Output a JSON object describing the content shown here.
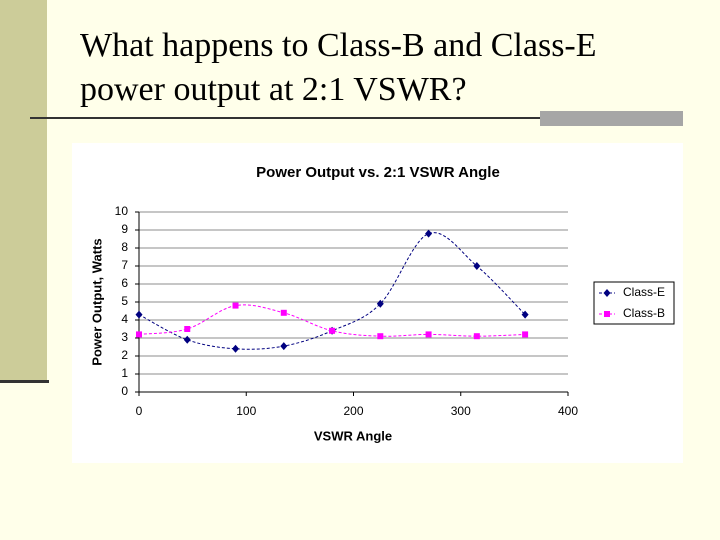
{
  "slide": {
    "title": "What happens to Class-B and Class-E power output at 2:1 VSWR?"
  },
  "chart_data": {
    "type": "line",
    "title": "Power Output vs. 2:1 VSWR Angle",
    "x_label": "VSWR Angle",
    "y_label": "Power Output, Watts",
    "x": [
      0,
      45,
      90,
      135,
      180,
      225,
      270,
      315,
      360
    ],
    "series": [
      {
        "name": "Class-E",
        "color": "#000080",
        "marker": "diamond",
        "values": [
          4.3,
          2.9,
          2.4,
          2.55,
          3.4,
          4.9,
          8.8,
          7.0,
          4.3
        ]
      },
      {
        "name": "Class-B",
        "color": "#ff00ff",
        "marker": "square",
        "values": [
          3.2,
          3.5,
          4.8,
          4.4,
          3.4,
          3.1,
          3.2,
          3.1,
          3.2
        ]
      }
    ],
    "xlim": [
      0,
      400
    ],
    "xticks": [
      0,
      100,
      200,
      300,
      400
    ],
    "ylim": [
      0,
      10
    ],
    "yticks": [
      0,
      1,
      2,
      3,
      4,
      5,
      6,
      7,
      8,
      9,
      10
    ],
    "grid": true,
    "smooth": true,
    "legend": "right"
  }
}
